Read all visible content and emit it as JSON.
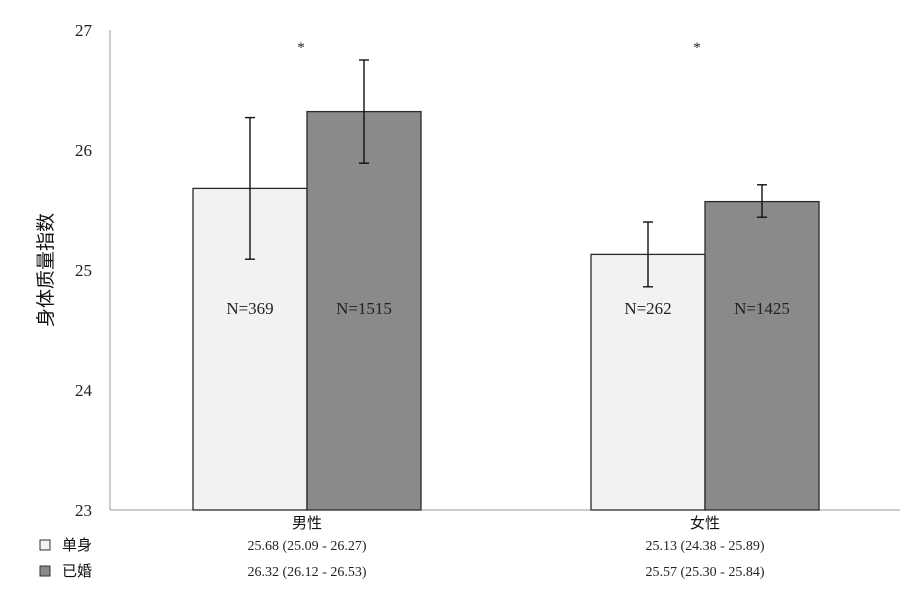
{
  "chart_data": {
    "type": "bar",
    "ylabel": "身体质量指数",
    "ylim": [
      23,
      27
    ],
    "yticks": [
      23,
      24,
      25,
      26,
      27
    ],
    "categories": [
      "男性",
      "女性"
    ],
    "series": [
      {
        "name": "单身",
        "color": "#f2f2f2",
        "values": [
          25.68,
          25.13
        ],
        "ci_low": [
          25.09,
          24.38
        ],
        "ci_high": [
          26.27,
          25.89
        ],
        "n_labels": [
          "N=369",
          "N=262"
        ],
        "err_low": [
          25.09,
          24.86
        ],
        "err_high": [
          26.27,
          25.4
        ]
      },
      {
        "name": "已婚",
        "color": "#898a8c",
        "values": [
          26.32,
          25.57
        ],
        "ci_low": [
          26.12,
          25.3
        ],
        "ci_high": [
          26.53,
          25.84
        ],
        "n_labels": [
          "N=1515",
          "N=1425"
        ],
        "err_low": [
          25.89,
          25.44
        ],
        "err_high": [
          26.75,
          25.71
        ]
      }
    ],
    "significance": [
      "*",
      "*"
    ],
    "table_rows": [
      {
        "label": "单身",
        "cells": [
          "25.68 (25.09 - 26.27)",
          "25.13 (24.38 - 25.89)"
        ]
      },
      {
        "label": "已婚",
        "cells": [
          "26.32 (26.12 - 26.53)",
          "25.57 (25.30 - 25.84)"
        ]
      }
    ]
  }
}
